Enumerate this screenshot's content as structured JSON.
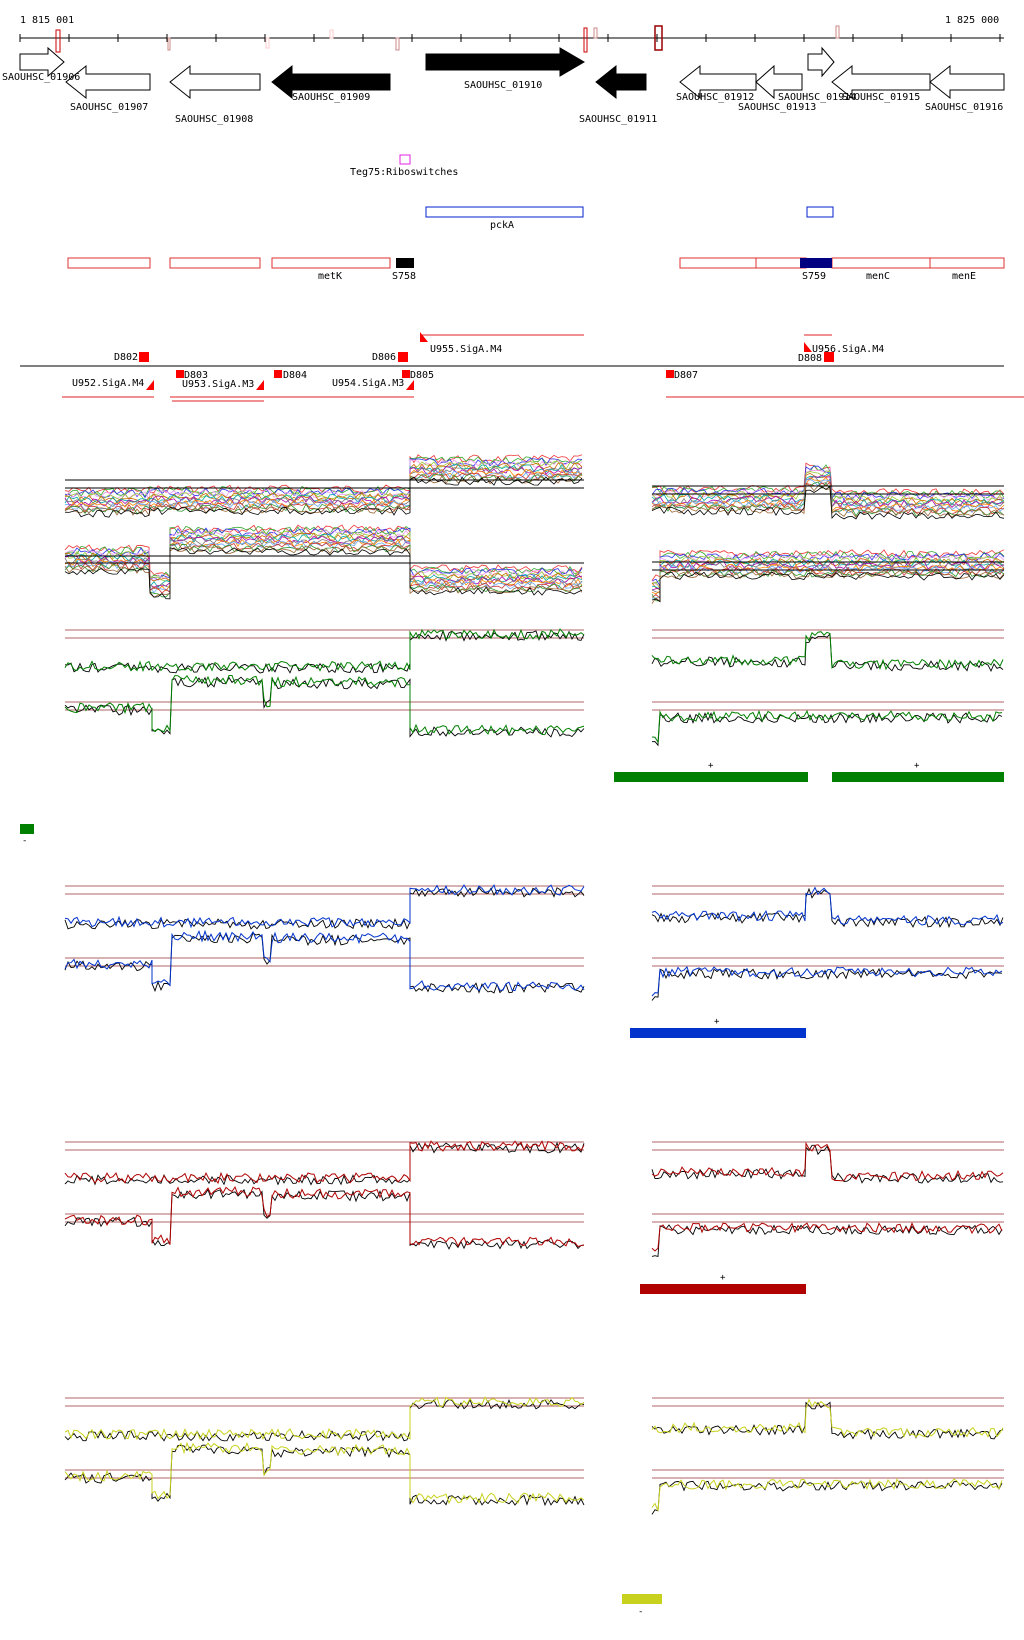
{
  "coordinates": {
    "start": "1 815 001",
    "end": "1 825 000"
  },
  "genes": [
    {
      "label": "SAOUHSC_01906",
      "strand": "+",
      "fill": "white"
    },
    {
      "label": "SAOUHSC_01907",
      "strand": "-",
      "fill": "white"
    },
    {
      "label": "SAOUHSC_01908",
      "strand": "-",
      "fill": "white"
    },
    {
      "label": "SAOUHSC_01909",
      "strand": "-",
      "fill": "black"
    },
    {
      "label": "SAOUHSC_01910",
      "strand": "+",
      "fill": "black"
    },
    {
      "label": "SAOUHSC_01911",
      "strand": "-",
      "fill": "black"
    },
    {
      "label": "SAOUHSC_01912",
      "strand": "-",
      "fill": "white"
    },
    {
      "label": "SAOUHSC_01913",
      "strand": "-",
      "fill": "white"
    },
    {
      "label": "SAOUHSC_01914",
      "strand": "+",
      "fill": "white"
    },
    {
      "label": "SAOUHSC_01915",
      "strand": "-",
      "fill": "white"
    },
    {
      "label": "SAOUHSC_01916",
      "strand": "-",
      "fill": "white"
    }
  ],
  "riboswitch_label": "Teg75:Riboswitches",
  "blue_features": [
    {
      "label": "pckA"
    },
    {
      "label": ""
    }
  ],
  "red_features": [
    {
      "label": ""
    },
    {
      "label": ""
    },
    {
      "label": "metK"
    },
    {
      "label": ""
    },
    {
      "label": ""
    },
    {
      "label": "menC"
    },
    {
      "label": "menE"
    }
  ],
  "segments": [
    {
      "label": "S758",
      "color": "#000000"
    },
    {
      "label": "S759",
      "color": "#000080"
    }
  ],
  "breakpoints": {
    "up": [
      "D802",
      "D806",
      "U955.SigA.M4",
      "U956.SigA.M4"
    ],
    "down": [
      "U952.SigA.M4",
      "D803",
      "U953.SigA.M3",
      "D804",
      "U954.SigA.M3",
      "D805",
      "D807",
      "D808"
    ]
  },
  "conditions": [
    {
      "color": "#008000",
      "strand_labels": [
        "+",
        "+",
        "-"
      ]
    },
    {
      "color": "#0033cc",
      "strand_labels": [
        "+"
      ]
    },
    {
      "color": "#b00000",
      "strand_labels": [
        "+"
      ]
    },
    {
      "color": "#c8d21e",
      "strand_labels": [
        "-"
      ]
    }
  ],
  "colors": {
    "accent_red": "#ff0000",
    "reference_line": "#993333"
  }
}
